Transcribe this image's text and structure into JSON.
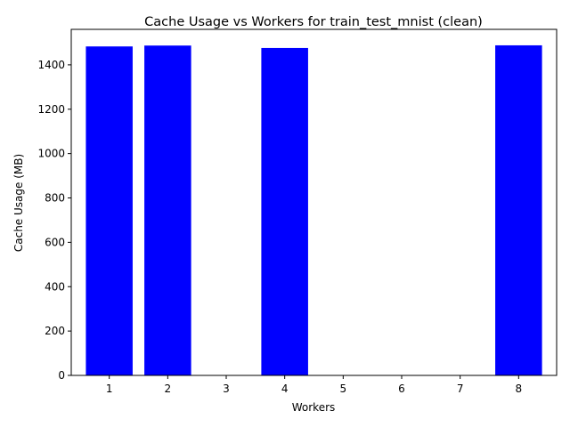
{
  "chart_data": {
    "type": "bar",
    "title": "Cache Usage vs Workers for train_test_mnist (clean)",
    "xlabel": "Workers",
    "ylabel": "Cache Usage (MB)",
    "x": [
      1,
      2,
      3,
      4,
      5,
      6,
      7,
      8
    ],
    "values": [
      1483,
      1487,
      0,
      1476,
      0,
      0,
      0,
      1488
    ],
    "xlim": [
      0.35,
      8.65
    ],
    "ylim": [
      0,
      1560
    ],
    "yticks": [
      0,
      200,
      400,
      600,
      800,
      1000,
      1200,
      1400
    ],
    "grid": false,
    "bar_color": "#0000ff"
  }
}
